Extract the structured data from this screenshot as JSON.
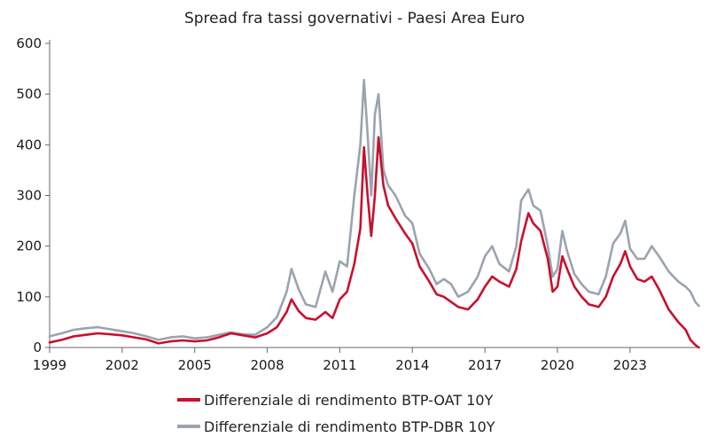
{
  "chart_data": {
    "type": "line",
    "title": "Spread fra tassi governativi - Paesi Area Euro",
    "xlabel": "",
    "ylabel": "",
    "ylim": [
      0,
      600
    ],
    "xlim": [
      1999,
      2025.9
    ],
    "yticks": [
      "0",
      "100",
      "200",
      "300",
      "400",
      "500",
      "600"
    ],
    "xticks": [
      "1999",
      "2002",
      "2005",
      "2008",
      "2011",
      "2014",
      "2017",
      "2020",
      "2023"
    ],
    "legend_position": "bottom",
    "series": [
      {
        "name": "Differenziale di rendimento BTP-OAT 10Y",
        "color": "#c8102e",
        "points": [
          [
            1999.0,
            10
          ],
          [
            1999.5,
            15
          ],
          [
            2000.0,
            22
          ],
          [
            2000.5,
            25
          ],
          [
            2001.0,
            28
          ],
          [
            2001.5,
            26
          ],
          [
            2002.0,
            24
          ],
          [
            2002.5,
            20
          ],
          [
            2003.0,
            16
          ],
          [
            2003.5,
            8
          ],
          [
            2004.0,
            12
          ],
          [
            2004.5,
            14
          ],
          [
            2005.0,
            12
          ],
          [
            2005.5,
            14
          ],
          [
            2006.0,
            20
          ],
          [
            2006.5,
            28
          ],
          [
            2007.0,
            24
          ],
          [
            2007.5,
            20
          ],
          [
            2008.0,
            28
          ],
          [
            2008.4,
            40
          ],
          [
            2008.8,
            70
          ],
          [
            2009.0,
            95
          ],
          [
            2009.3,
            72
          ],
          [
            2009.6,
            58
          ],
          [
            2010.0,
            55
          ],
          [
            2010.4,
            70
          ],
          [
            2010.7,
            58
          ],
          [
            2011.0,
            95
          ],
          [
            2011.3,
            110
          ],
          [
            2011.6,
            165
          ],
          [
            2011.85,
            235
          ],
          [
            2012.0,
            395
          ],
          [
            2012.15,
            300
          ],
          [
            2012.3,
            220
          ],
          [
            2012.45,
            300
          ],
          [
            2012.6,
            415
          ],
          [
            2012.8,
            320
          ],
          [
            2013.0,
            280
          ],
          [
            2013.3,
            255
          ],
          [
            2013.7,
            225
          ],
          [
            2014.0,
            205
          ],
          [
            2014.3,
            160
          ],
          [
            2014.7,
            130
          ],
          [
            2015.0,
            105
          ],
          [
            2015.3,
            100
          ],
          [
            2015.6,
            90
          ],
          [
            2015.9,
            80
          ],
          [
            2016.3,
            75
          ],
          [
            2016.7,
            95
          ],
          [
            2017.0,
            120
          ],
          [
            2017.3,
            140
          ],
          [
            2017.6,
            130
          ],
          [
            2018.0,
            120
          ],
          [
            2018.3,
            155
          ],
          [
            2018.5,
            210
          ],
          [
            2018.8,
            265
          ],
          [
            2019.0,
            245
          ],
          [
            2019.3,
            230
          ],
          [
            2019.6,
            175
          ],
          [
            2019.8,
            110
          ],
          [
            2020.0,
            120
          ],
          [
            2020.2,
            180
          ],
          [
            2020.4,
            155
          ],
          [
            2020.7,
            120
          ],
          [
            2021.0,
            100
          ],
          [
            2021.3,
            85
          ],
          [
            2021.7,
            80
          ],
          [
            2022.0,
            100
          ],
          [
            2022.3,
            140
          ],
          [
            2022.6,
            165
          ],
          [
            2022.8,
            190
          ],
          [
            2023.0,
            160
          ],
          [
            2023.3,
            135
          ],
          [
            2023.6,
            130
          ],
          [
            2023.9,
            140
          ],
          [
            2024.2,
            115
          ],
          [
            2024.6,
            75
          ],
          [
            2025.0,
            50
          ],
          [
            2025.3,
            35
          ],
          [
            2025.5,
            15
          ],
          [
            2025.7,
            5
          ],
          [
            2025.85,
            0
          ]
        ]
      },
      {
        "name": "Differenziale di rendimento BTP-DBR 10Y",
        "color": "#9ba4ae",
        "points": [
          [
            1999.0,
            22
          ],
          [
            1999.5,
            28
          ],
          [
            2000.0,
            35
          ],
          [
            2000.5,
            38
          ],
          [
            2001.0,
            40
          ],
          [
            2001.5,
            36
          ],
          [
            2002.0,
            32
          ],
          [
            2002.5,
            28
          ],
          [
            2003.0,
            22
          ],
          [
            2003.5,
            15
          ],
          [
            2004.0,
            20
          ],
          [
            2004.5,
            22
          ],
          [
            2005.0,
            18
          ],
          [
            2005.5,
            20
          ],
          [
            2006.0,
            25
          ],
          [
            2006.5,
            30
          ],
          [
            2007.0,
            26
          ],
          [
            2007.5,
            25
          ],
          [
            2008.0,
            40
          ],
          [
            2008.4,
            60
          ],
          [
            2008.8,
            110
          ],
          [
            2009.0,
            155
          ],
          [
            2009.3,
            115
          ],
          [
            2009.6,
            85
          ],
          [
            2010.0,
            80
          ],
          [
            2010.4,
            150
          ],
          [
            2010.7,
            110
          ],
          [
            2011.0,
            170
          ],
          [
            2011.3,
            160
          ],
          [
            2011.6,
            300
          ],
          [
            2011.85,
            400
          ],
          [
            2012.0,
            528
          ],
          [
            2012.15,
            420
          ],
          [
            2012.3,
            300
          ],
          [
            2012.45,
            460
          ],
          [
            2012.6,
            500
          ],
          [
            2012.8,
            350
          ],
          [
            2013.0,
            320
          ],
          [
            2013.3,
            300
          ],
          [
            2013.7,
            260
          ],
          [
            2014.0,
            245
          ],
          [
            2014.3,
            185
          ],
          [
            2014.7,
            155
          ],
          [
            2015.0,
            125
          ],
          [
            2015.3,
            135
          ],
          [
            2015.6,
            125
          ],
          [
            2015.9,
            100
          ],
          [
            2016.3,
            110
          ],
          [
            2016.7,
            140
          ],
          [
            2017.0,
            180
          ],
          [
            2017.3,
            200
          ],
          [
            2017.6,
            165
          ],
          [
            2018.0,
            150
          ],
          [
            2018.3,
            200
          ],
          [
            2018.5,
            290
          ],
          [
            2018.8,
            312
          ],
          [
            2019.0,
            280
          ],
          [
            2019.3,
            270
          ],
          [
            2019.6,
            200
          ],
          [
            2019.8,
            140
          ],
          [
            2020.0,
            155
          ],
          [
            2020.2,
            230
          ],
          [
            2020.4,
            190
          ],
          [
            2020.7,
            145
          ],
          [
            2021.0,
            125
          ],
          [
            2021.3,
            110
          ],
          [
            2021.7,
            105
          ],
          [
            2022.0,
            140
          ],
          [
            2022.3,
            205
          ],
          [
            2022.6,
            225
          ],
          [
            2022.8,
            250
          ],
          [
            2023.0,
            195
          ],
          [
            2023.3,
            175
          ],
          [
            2023.6,
            175
          ],
          [
            2023.9,
            200
          ],
          [
            2024.2,
            180
          ],
          [
            2024.6,
            150
          ],
          [
            2025.0,
            130
          ],
          [
            2025.3,
            120
          ],
          [
            2025.5,
            110
          ],
          [
            2025.7,
            90
          ],
          [
            2025.85,
            82
          ]
        ]
      }
    ]
  }
}
